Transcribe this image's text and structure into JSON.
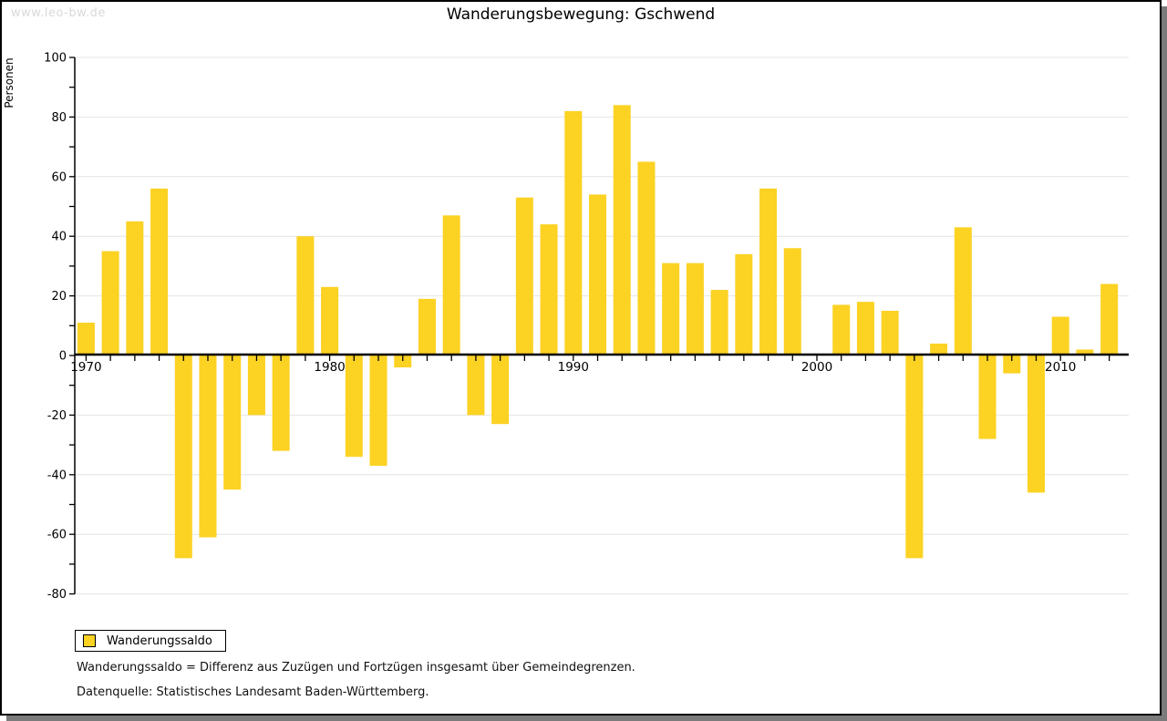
{
  "watermark": "www.leo-bw.de",
  "title": "Wanderungsbewegung: Gschwend",
  "y_axis_label": "Personen",
  "legend": {
    "label": "Wanderungssaldo"
  },
  "footnotes": [
    "Wanderungssaldo = Differenz aus Zuzügen und Fortzügen insgesamt über Gemeindegrenzen.",
    "Datenquelle: Statistisches Landesamt Baden-Württemberg."
  ],
  "colors": {
    "bar": "#fcd223",
    "grid": "#e4e4e4",
    "axis": "#000000",
    "text": "#000000",
    "watermark": "#d9d9d9",
    "shadow": "#7b7b7b"
  },
  "chart_data": {
    "type": "bar",
    "title": "Wanderungsbewegung: Gschwend",
    "xlabel": "",
    "ylabel": "Personen",
    "ylim": [
      -80,
      100
    ],
    "y_major_step": 20,
    "y_minor_step": 10,
    "grid": true,
    "legend_position": "bottom-left",
    "x_labeled_ticks": [
      1970,
      1980,
      1990,
      2000,
      2010
    ],
    "x": [
      1970,
      1971,
      1972,
      1973,
      1974,
      1975,
      1976,
      1977,
      1978,
      1979,
      1980,
      1981,
      1982,
      1983,
      1984,
      1985,
      1986,
      1987,
      1988,
      1989,
      1990,
      1991,
      1992,
      1993,
      1994,
      1995,
      1996,
      1997,
      1998,
      1999,
      2000,
      2001,
      2002,
      2003,
      2004,
      2005,
      2006,
      2007,
      2008,
      2009,
      2010,
      2011,
      2012
    ],
    "series": [
      {
        "name": "Wanderungssaldo",
        "values": [
          11,
          35,
          45,
          56,
          -68,
          -61,
          -45,
          -20,
          -32,
          40,
          23,
          -34,
          -37,
          -4,
          19,
          47,
          -20,
          -23,
          53,
          44,
          82,
          54,
          84,
          65,
          31,
          31,
          22,
          34,
          56,
          36,
          0,
          17,
          18,
          15,
          -68,
          4,
          43,
          -28,
          -6,
          -46,
          13,
          2,
          24
        ]
      }
    ]
  }
}
